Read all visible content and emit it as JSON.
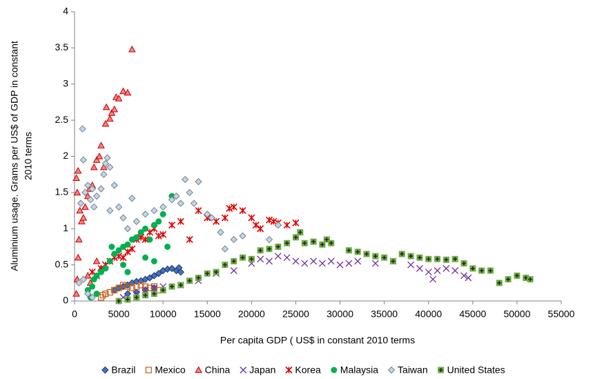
{
  "chart_data": {
    "type": "scatter",
    "xlabel": "Per capita GDP ( US$ in constant 2010 terms",
    "ylabel": [
      "Aluminium usage. Grams per US$ of GDP in  constant",
      "2010 terms"
    ],
    "xlim": [
      0,
      55000
    ],
    "xticks": [
      0,
      5000,
      10000,
      15000,
      20000,
      25000,
      30000,
      35000,
      40000,
      45000,
      50000,
      55000
    ],
    "ylim": [
      0,
      4
    ],
    "yticks": [
      0,
      0.5,
      1,
      1.5,
      2,
      2.5,
      3,
      3.5,
      4
    ],
    "legend": "bottom",
    "series": [
      {
        "name": "Brazil",
        "color": "#4472c4",
        "marker": "diamond",
        "x": [
          4500,
          5000,
          5500,
          6000,
          6500,
          7000,
          7500,
          8000,
          8500,
          9000,
          9500,
          10000,
          10500,
          11000,
          11500,
          12000,
          11800,
          6000,
          7000,
          8000,
          9000
        ],
        "values": [
          0.15,
          0.18,
          0.2,
          0.22,
          0.25,
          0.27,
          0.28,
          0.3,
          0.32,
          0.35,
          0.38,
          0.42,
          0.44,
          0.45,
          0.42,
          0.4,
          0.46,
          0.1,
          0.12,
          0.15,
          0.18
        ]
      },
      {
        "name": "Mexico",
        "color": "#c55a11",
        "marker": "square",
        "x": [
          3000,
          3200,
          3500,
          4000,
          4500,
          5000,
          5500,
          6000,
          6500,
          7000,
          7500,
          8000,
          8500,
          9000,
          9500
        ],
        "values": [
          0.05,
          0.08,
          0.1,
          0.12,
          0.15,
          0.18,
          0.22,
          0.2,
          0.18,
          0.2,
          0.22,
          0.2,
          0.18,
          0.2,
          0.15
        ]
      },
      {
        "name": "China",
        "color": "#ff3b3b",
        "marker": "triangle",
        "x": [
          200,
          300,
          400,
          500,
          300,
          200,
          400,
          600,
          800,
          1000,
          1200,
          1500,
          1700,
          2000,
          2200,
          2500,
          2800,
          3000,
          3300,
          3500,
          3600,
          4000,
          4200,
          4500,
          4700,
          5000,
          5500,
          6000,
          6500,
          1500,
          1800,
          2500,
          3000
        ],
        "values": [
          0.1,
          0.3,
          0.6,
          0.85,
          1.5,
          1.7,
          1.8,
          1.25,
          1.1,
          1.15,
          1.3,
          1.45,
          1.55,
          1.6,
          1.85,
          1.95,
          2.0,
          2.15,
          1.85,
          2.45,
          2.68,
          2.52,
          2.6,
          2.65,
          2.82,
          2.8,
          2.9,
          2.88,
          3.48,
          0.35,
          0.25,
          0.55,
          0.45
        ]
      },
      {
        "name": "Japan",
        "color": "#7030a0",
        "marker": "x",
        "x": [
          5500,
          7000,
          8000,
          9000,
          10000,
          12000,
          14000,
          16000,
          18000,
          20000,
          21000,
          22000,
          23000,
          24000,
          25000,
          26000,
          27000,
          28000,
          29000,
          30000,
          31000,
          32000,
          34000,
          36000,
          38000,
          39000,
          40000,
          40500,
          41000,
          42000,
          43000,
          44000,
          44500
        ],
        "values": [
          0.05,
          0.1,
          0.15,
          0.18,
          0.2,
          0.22,
          0.28,
          0.38,
          0.42,
          0.52,
          0.58,
          0.55,
          0.62,
          0.6,
          0.55,
          0.52,
          0.55,
          0.52,
          0.55,
          0.5,
          0.52,
          0.55,
          0.52,
          0.55,
          0.5,
          0.45,
          0.4,
          0.3,
          0.42,
          0.45,
          0.42,
          0.35,
          0.32
        ]
      },
      {
        "name": "Korea",
        "color": "#e00000",
        "marker": "star",
        "x": [
          2000,
          2500,
          3000,
          3500,
          4000,
          4500,
          5000,
          5500,
          6000,
          6500,
          7000,
          7500,
          8000,
          8500,
          9000,
          9500,
          10000,
          11000,
          12000,
          13000,
          14000,
          15000,
          16000,
          17000,
          17500,
          18000,
          19000,
          20000,
          20500,
          21000,
          22000,
          22500,
          23000,
          24000,
          25000
        ],
        "values": [
          0.4,
          0.35,
          0.45,
          0.5,
          0.55,
          0.6,
          0.62,
          0.6,
          0.68,
          0.72,
          0.85,
          0.88,
          0.85,
          0.95,
          1.0,
          0.9,
          0.92,
          1.05,
          1.1,
          0.85,
          1.25,
          1.15,
          1.1,
          1.15,
          1.28,
          1.3,
          1.25,
          1.15,
          1.05,
          1.0,
          1.12,
          1.1,
          1.08,
          1.05,
          1.08
        ]
      },
      {
        "name": "Malaysia",
        "color": "#00b050",
        "marker": "circle",
        "x": [
          1800,
          2000,
          2200,
          2500,
          3000,
          3500,
          4000,
          4200,
          4500,
          5000,
          5500,
          6000,
          6500,
          7000,
          7500,
          8000,
          8500,
          9000,
          9500,
          10000,
          10500,
          11000,
          8000,
          9000,
          6000,
          5500,
          2500,
          1500
        ],
        "values": [
          0.05,
          0.2,
          0.3,
          0.35,
          0.4,
          0.45,
          0.55,
          0.75,
          0.65,
          0.7,
          0.75,
          0.78,
          0.85,
          0.88,
          0.95,
          1.0,
          0.85,
          1.05,
          1.1,
          1.2,
          0.75,
          1.45,
          0.6,
          0.55,
          0.4,
          0.5,
          0.1,
          0.15
        ]
      },
      {
        "name": "Taiwan",
        "color": "#bdd7ee",
        "marker": "diamond",
        "x": [
          500,
          700,
          900,
          1000,
          1200,
          1500,
          1800,
          2000,
          2200,
          2500,
          3000,
          3300,
          3500,
          3700,
          4000,
          4500,
          4000,
          5000,
          5500,
          6000,
          6500,
          7000,
          8000,
          9000,
          10000,
          11000,
          11500,
          12000,
          12500,
          13000,
          13500,
          14000,
          15000,
          15500,
          16500,
          17000,
          18000,
          19000,
          22000,
          23000,
          1500,
          2000,
          1000
        ],
        "values": [
          0.25,
          1.35,
          2.38,
          1.95,
          1.5,
          1.6,
          1.4,
          1.55,
          1.3,
          1.45,
          1.55,
          1.75,
          1.9,
          1.98,
          1.85,
          1.6,
          1.25,
          1.3,
          1.15,
          1.0,
          1.42,
          1.1,
          1.2,
          1.25,
          1.3,
          1.4,
          1.45,
          1.35,
          1.68,
          1.5,
          1.35,
          1.65,
          1.2,
          1.15,
          0.95,
          0.72,
          0.85,
          0.9,
          0.85,
          1.05,
          0.1,
          0.05,
          0.3
        ]
      },
      {
        "name": "United States",
        "color": "#70ad47",
        "marker": "plussquare",
        "x": [
          5000,
          6000,
          7000,
          8000,
          9000,
          10000,
          11000,
          12000,
          13000,
          14000,
          15000,
          16000,
          17000,
          18000,
          19000,
          20000,
          21000,
          22000,
          23000,
          24000,
          25000,
          25500,
          26000,
          27000,
          28000,
          28500,
          29000,
          31000,
          32000,
          33000,
          34000,
          35000,
          36000,
          37000,
          38000,
          39000,
          40000,
          41000,
          42000,
          43000,
          44000,
          45000,
          46000,
          47000,
          48000,
          49000,
          50000,
          51000,
          51500
        ],
        "values": [
          0.0,
          0.02,
          0.05,
          0.08,
          0.1,
          0.15,
          0.2,
          0.22,
          0.28,
          0.32,
          0.38,
          0.4,
          0.5,
          0.55,
          0.6,
          0.58,
          0.7,
          0.72,
          0.75,
          0.8,
          0.88,
          0.95,
          0.8,
          0.82,
          0.78,
          0.85,
          0.8,
          0.7,
          0.68,
          0.65,
          0.62,
          0.6,
          0.55,
          0.65,
          0.62,
          0.6,
          0.58,
          0.58,
          0.57,
          0.58,
          0.52,
          0.45,
          0.42,
          0.42,
          0.25,
          0.3,
          0.35,
          0.32,
          0.3
        ]
      }
    ]
  }
}
